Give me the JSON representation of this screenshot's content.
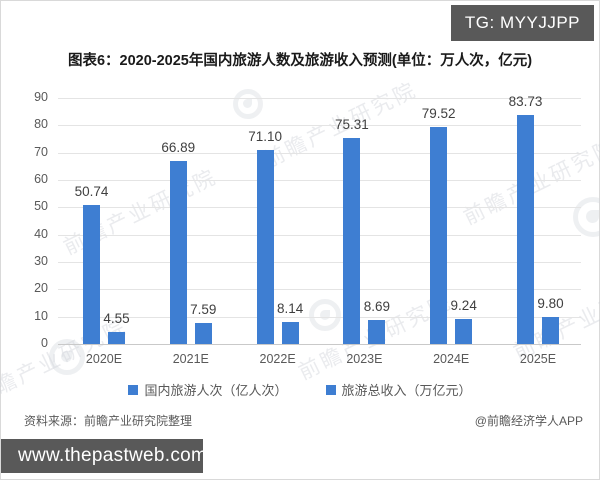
{
  "badge": {
    "text": "TG: MYYJJPP"
  },
  "title": "图表6：2020-2025年国内旅游人数及旅游收入预测(单位：万人次，亿元)",
  "chart_data": {
    "type": "bar",
    "categories": [
      "2020E",
      "2021E",
      "2022E",
      "2023E",
      "2024E",
      "2025E"
    ],
    "series": [
      {
        "name": "国内旅游人次（亿人次）",
        "values": [
          50.74,
          66.89,
          71.1,
          75.31,
          79.52,
          83.73
        ]
      },
      {
        "name": "旅游总收入（万亿元）",
        "values": [
          4.55,
          7.59,
          8.14,
          8.69,
          9.24,
          9.8
        ]
      }
    ],
    "title": "图表6：2020-2025年国内旅游人数及旅游收入预测(单位：万人次，亿元)",
    "xlabel": "",
    "ylabel": "",
    "ylim": [
      0,
      90
    ],
    "ytick_step": 10,
    "yticks": [
      0,
      10,
      20,
      30,
      40,
      50,
      60,
      70,
      80,
      90
    ],
    "bar_color": "#3E7ED2",
    "grid": true,
    "legend_position": "bottom"
  },
  "watermark": {
    "text": "前瞻产业研究院"
  },
  "footer": {
    "source": "资料来源：前瞻产业研究院整理",
    "credit": "@前瞻经济学人APP"
  },
  "bottom_bar": {
    "text": "www.thepastweb.com"
  }
}
